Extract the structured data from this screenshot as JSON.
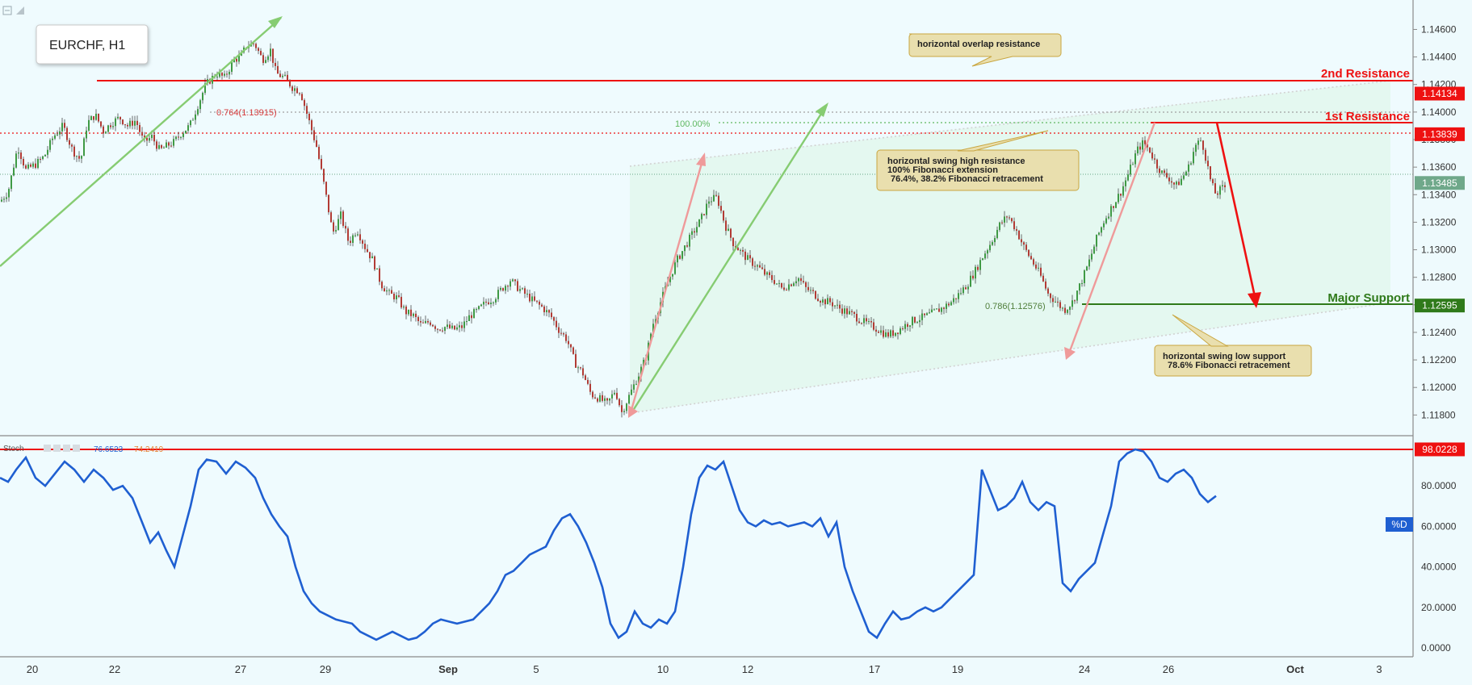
{
  "chart_data": {
    "type": "candlestick",
    "title": "EURCHF, H1",
    "x_ticks": [
      "20",
      "22",
      "27",
      "29",
      "Sep",
      "5",
      "10",
      "12",
      "17",
      "19",
      "24",
      "26",
      "Oct",
      "3"
    ],
    "y_ticks": [
      "1.14600",
      "1.14400",
      "1.14200",
      "1.14000",
      "1.13800",
      "1.13600",
      "1.13400",
      "1.13200",
      "1.13000",
      "1.12800",
      "1.12600",
      "1.12400",
      "1.12200",
      "1.12000",
      "1.11800"
    ],
    "ylim": [
      1.1172,
      1.1472
    ],
    "price_path": [
      [
        0,
        1.1335
      ],
      [
        10,
        1.1342
      ],
      [
        22,
        1.1375
      ],
      [
        32,
        1.1358
      ],
      [
        44,
        1.1362
      ],
      [
        55,
        1.1368
      ],
      [
        66,
        1.1382
      ],
      [
        78,
        1.139
      ],
      [
        90,
        1.1372
      ],
      [
        100,
        1.1365
      ],
      [
        108,
        1.1392
      ],
      [
        118,
        1.1398
      ],
      [
        128,
        1.1386
      ],
      [
        138,
        1.1392
      ],
      [
        148,
        1.1396
      ],
      [
        158,
        1.139
      ],
      [
        168,
        1.1394
      ],
      [
        178,
        1.1378
      ],
      [
        188,
        1.1382
      ],
      [
        198,
        1.1372
      ],
      [
        208,
        1.1376
      ],
      [
        215,
        1.1378
      ],
      [
        225,
        1.1385
      ],
      [
        235,
        1.139
      ],
      [
        245,
        1.1405
      ],
      [
        255,
        1.142
      ],
      [
        268,
        1.1428
      ],
      [
        278,
        1.1425
      ],
      [
        290,
        1.1438
      ],
      [
        298,
        1.144
      ],
      [
        305,
        1.1448
      ],
      [
        315,
        1.145
      ],
      [
        325,
        1.1438
      ],
      [
        335,
        1.1445
      ],
      [
        342,
        1.1428
      ],
      [
        352,
        1.1425
      ],
      [
        362,
        1.1418
      ],
      [
        372,
        1.1415
      ],
      [
        382,
        1.1395
      ],
      [
        392,
        1.1375
      ],
      [
        402,
        1.1345
      ],
      [
        412,
        1.1312
      ],
      [
        422,
        1.1325
      ],
      [
        432,
        1.1305
      ],
      [
        442,
        1.1315
      ],
      [
        452,
        1.1302
      ],
      [
        462,
        1.1292
      ],
      [
        472,
        1.1275
      ],
      [
        482,
        1.1268
      ],
      [
        492,
        1.1265
      ],
      [
        502,
        1.1255
      ],
      [
        512,
        1.1252
      ],
      [
        522,
        1.1245
      ],
      [
        532,
        1.1248
      ],
      [
        542,
        1.1243
      ],
      [
        552,
        1.1244
      ],
      [
        562,
        1.1242
      ],
      [
        572,
        1.1244
      ],
      [
        582,
        1.1252
      ],
      [
        592,
        1.1256
      ],
      [
        602,
        1.1262
      ],
      [
        612,
        1.1265
      ],
      [
        622,
        1.1272
      ],
      [
        632,
        1.1278
      ],
      [
        642,
        1.1272
      ],
      [
        652,
        1.1267
      ],
      [
        662,
        1.1262
      ],
      [
        672,
        1.1258
      ],
      [
        682,
        1.1252
      ],
      [
        692,
        1.1242
      ],
      [
        702,
        1.1235
      ],
      [
        712,
        1.1218
      ],
      [
        722,
        1.121
      ],
      [
        732,
        1.1195
      ],
      [
        742,
        1.1192
      ],
      [
        752,
        1.1188
      ],
      [
        762,
        1.1198
      ],
      [
        770,
        1.1182
      ],
      [
        780,
        1.1195
      ],
      [
        790,
        1.1208
      ],
      [
        800,
        1.1222
      ],
      [
        808,
        1.1245
      ],
      [
        818,
        1.1262
      ],
      [
        828,
        1.1278
      ],
      [
        838,
        1.1292
      ],
      [
        848,
        1.1302
      ],
      [
        858,
        1.1312
      ],
      [
        868,
        1.1322
      ],
      [
        878,
        1.1336
      ],
      [
        888,
        1.1338
      ],
      [
        898,
        1.1318
      ],
      [
        908,
        1.1305
      ],
      [
        918,
        1.1298
      ],
      [
        928,
        1.1292
      ],
      [
        938,
        1.1288
      ],
      [
        948,
        1.1282
      ],
      [
        958,
        1.1278
      ],
      [
        968,
        1.1272
      ],
      [
        978,
        1.1275
      ],
      [
        988,
        1.128
      ],
      [
        998,
        1.1272
      ],
      [
        1008,
        1.1268
      ],
      [
        1018,
        1.1263
      ],
      [
        1028,
        1.1262
      ],
      [
        1038,
        1.1258
      ],
      [
        1048,
        1.1255
      ],
      [
        1058,
        1.1252
      ],
      [
        1068,
        1.1248
      ],
      [
        1078,
        1.1245
      ],
      [
        1088,
        1.1242
      ],
      [
        1098,
        1.1238
      ],
      [
        1108,
        1.124
      ],
      [
        1118,
        1.1244
      ],
      [
        1128,
        1.1248
      ],
      [
        1138,
        1.125
      ],
      [
        1148,
        1.1252
      ],
      [
        1158,
        1.1255
      ],
      [
        1168,
        1.1258
      ],
      [
        1178,
        1.1262
      ],
      [
        1188,
        1.1268
      ],
      [
        1198,
        1.1275
      ],
      [
        1208,
        1.1285
      ],
      [
        1218,
        1.1296
      ],
      [
        1228,
        1.1306
      ],
      [
        1238,
        1.1318
      ],
      [
        1248,
        1.1325
      ],
      [
        1258,
        1.1315
      ],
      [
        1268,
        1.1302
      ],
      [
        1278,
        1.1292
      ],
      [
        1288,
        1.1282
      ],
      [
        1298,
        1.1268
      ],
      [
        1308,
        1.1262
      ],
      [
        1318,
        1.1256
      ],
      [
        1328,
        1.1262
      ],
      [
        1338,
        1.1275
      ],
      [
        1348,
        1.129
      ],
      [
        1358,
        1.1308
      ],
      [
        1368,
        1.1322
      ],
      [
        1378,
        1.1332
      ],
      [
        1388,
        1.1342
      ],
      [
        1398,
        1.1356
      ],
      [
        1408,
        1.1372
      ],
      [
        1416,
        1.1378
      ],
      [
        1424,
        1.1372
      ],
      [
        1432,
        1.1362
      ],
      [
        1440,
        1.1355
      ],
      [
        1448,
        1.1352
      ],
      [
        1456,
        1.1346
      ],
      [
        1464,
        1.1352
      ],
      [
        1472,
        1.136
      ],
      [
        1480,
        1.1375
      ],
      [
        1488,
        1.138
      ],
      [
        1494,
        1.1365
      ],
      [
        1500,
        1.1348
      ],
      [
        1506,
        1.134
      ],
      [
        1512,
        1.1344
      ],
      [
        1518,
        1.1346
      ]
    ],
    "levels": [
      {
        "name": "2nd Resistance",
        "value": "1.14134",
        "y": 1.14134,
        "color": "#ee1111"
      },
      {
        "name": "1st Resistance",
        "value": "1.13839",
        "y": 1.13839,
        "color": "#ee1111"
      },
      {
        "name": "Major Support",
        "value": "1.12595",
        "y": 1.12595,
        "color": "#2f7a1a"
      }
    ],
    "current_price": "1.13485",
    "fib_labels": [
      "0.764(1.13915)",
      "100.00%",
      "0.786(1.12576)"
    ],
    "annotations": [
      {
        "lines": [
          "horizontal overlap resistance"
        ]
      },
      {
        "lines": [
          "horizontal swing high resistance",
          "100% Fibonacci extension",
          "76.4%, 38.2% Fibonacci retracement"
        ]
      },
      {
        "lines": [
          "horizontal swing low support",
          "78.6% Fibonacci retracement"
        ]
      }
    ],
    "stoch": {
      "label": "Stoch",
      "values": [
        "76.6523",
        "74.2419"
      ],
      "series_label": "%D",
      "y_ticks": [
        "80.0000",
        "60.0000",
        "40.0000",
        "20.0000",
        "0.0000"
      ],
      "ylim": [
        -2,
        100
      ],
      "level": "98.0228",
      "level_value": 98.0228,
      "d_path": [
        [
          0,
          84
        ],
        [
          10,
          82
        ],
        [
          20,
          88
        ],
        [
          32,
          94
        ],
        [
          44,
          84
        ],
        [
          56,
          80
        ],
        [
          68,
          86
        ],
        [
          80,
          92
        ],
        [
          92,
          88
        ],
        [
          104,
          82
        ],
        [
          116,
          88
        ],
        [
          128,
          84
        ],
        [
          140,
          78
        ],
        [
          152,
          80
        ],
        [
          164,
          74
        ],
        [
          176,
          62
        ],
        [
          186,
          52
        ],
        [
          196,
          57
        ],
        [
          206,
          48
        ],
        [
          216,
          40
        ],
        [
          226,
          55
        ],
        [
          236,
          70
        ],
        [
          246,
          88
        ],
        [
          256,
          93
        ],
        [
          268,
          92
        ],
        [
          280,
          86
        ],
        [
          292,
          92
        ],
        [
          304,
          89
        ],
        [
          316,
          84
        ],
        [
          326,
          74
        ],
        [
          336,
          66
        ],
        [
          346,
          60
        ],
        [
          356,
          55
        ],
        [
          366,
          40
        ],
        [
          376,
          28
        ],
        [
          386,
          22
        ],
        [
          396,
          18
        ],
        [
          406,
          16
        ],
        [
          416,
          14
        ],
        [
          426,
          13
        ],
        [
          436,
          12
        ],
        [
          446,
          8
        ],
        [
          456,
          6
        ],
        [
          466,
          4
        ],
        [
          476,
          6
        ],
        [
          486,
          8
        ],
        [
          496,
          6
        ],
        [
          506,
          4
        ],
        [
          516,
          5
        ],
        [
          526,
          8
        ],
        [
          536,
          12
        ],
        [
          546,
          14
        ],
        [
          556,
          13
        ],
        [
          566,
          12
        ],
        [
          576,
          13
        ],
        [
          586,
          14
        ],
        [
          596,
          18
        ],
        [
          606,
          22
        ],
        [
          616,
          28
        ],
        [
          626,
          36
        ],
        [
          636,
          38
        ],
        [
          646,
          42
        ],
        [
          656,
          46
        ],
        [
          666,
          48
        ],
        [
          676,
          50
        ],
        [
          686,
          58
        ],
        [
          696,
          64
        ],
        [
          706,
          66
        ],
        [
          716,
          60
        ],
        [
          726,
          52
        ],
        [
          736,
          42
        ],
        [
          746,
          30
        ],
        [
          756,
          12
        ],
        [
          766,
          5
        ],
        [
          776,
          8
        ],
        [
          786,
          18
        ],
        [
          796,
          12
        ],
        [
          806,
          10
        ],
        [
          816,
          14
        ],
        [
          826,
          12
        ],
        [
          836,
          18
        ],
        [
          846,
          40
        ],
        [
          856,
          66
        ],
        [
          866,
          84
        ],
        [
          876,
          90
        ],
        [
          886,
          88
        ],
        [
          896,
          92
        ],
        [
          906,
          80
        ],
        [
          916,
          68
        ],
        [
          926,
          62
        ],
        [
          936,
          60
        ],
        [
          946,
          63
        ],
        [
          956,
          61
        ],
        [
          966,
          62
        ],
        [
          976,
          60
        ],
        [
          986,
          61
        ],
        [
          996,
          62
        ],
        [
          1006,
          60
        ],
        [
          1016,
          64
        ],
        [
          1026,
          55
        ],
        [
          1036,
          62
        ],
        [
          1046,
          40
        ],
        [
          1056,
          28
        ],
        [
          1066,
          18
        ],
        [
          1076,
          8
        ],
        [
          1086,
          5
        ],
        [
          1096,
          12
        ],
        [
          1106,
          18
        ],
        [
          1116,
          14
        ],
        [
          1126,
          15
        ],
        [
          1136,
          18
        ],
        [
          1146,
          20
        ],
        [
          1156,
          18
        ],
        [
          1166,
          20
        ],
        [
          1176,
          24
        ],
        [
          1186,
          28
        ],
        [
          1196,
          32
        ],
        [
          1206,
          36
        ],
        [
          1216,
          88
        ],
        [
          1226,
          78
        ],
        [
          1236,
          68
        ],
        [
          1246,
          70
        ],
        [
          1256,
          74
        ],
        [
          1266,
          82
        ],
        [
          1276,
          72
        ],
        [
          1286,
          68
        ],
        [
          1296,
          72
        ],
        [
          1306,
          70
        ],
        [
          1316,
          32
        ],
        [
          1326,
          28
        ],
        [
          1336,
          34
        ],
        [
          1346,
          38
        ],
        [
          1356,
          42
        ],
        [
          1366,
          56
        ],
        [
          1376,
          70
        ],
        [
          1386,
          92
        ],
        [
          1396,
          96
        ],
        [
          1406,
          98
        ],
        [
          1416,
          97
        ],
        [
          1426,
          92
        ],
        [
          1436,
          84
        ],
        [
          1446,
          82
        ],
        [
          1456,
          86
        ],
        [
          1466,
          88
        ],
        [
          1476,
          84
        ],
        [
          1486,
          76
        ],
        [
          1496,
          72
        ],
        [
          1506,
          75
        ]
      ]
    }
  }
}
